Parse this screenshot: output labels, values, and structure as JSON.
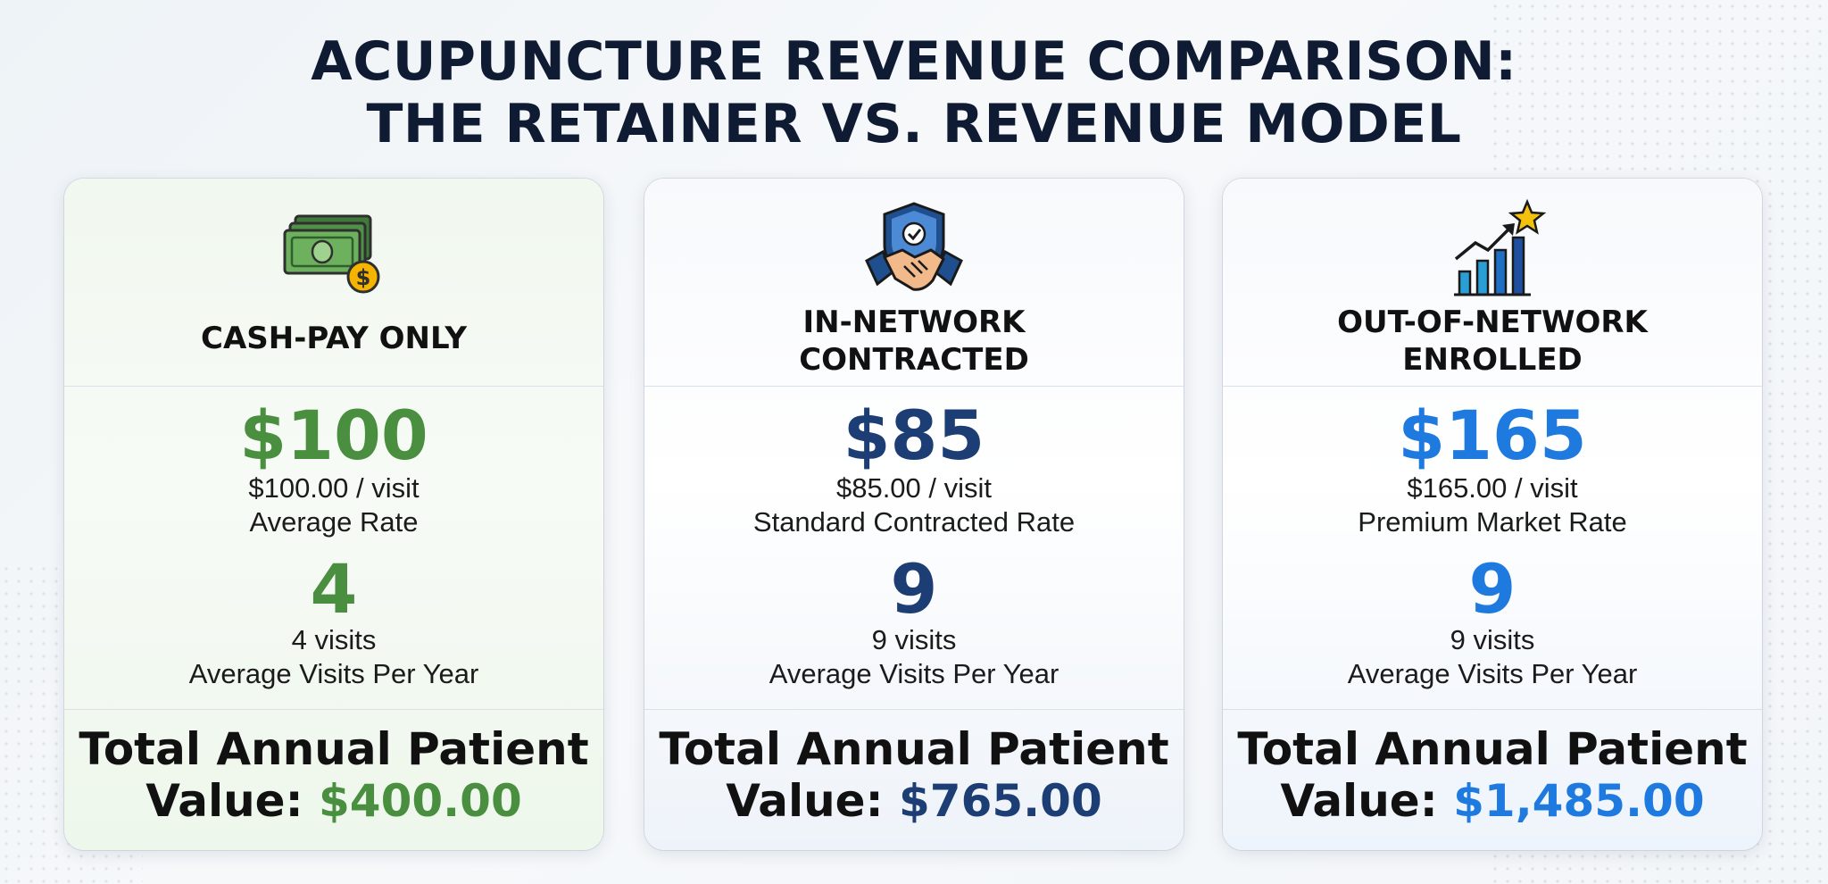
{
  "title": {
    "line1": "ACUPUNCTURE REVENUE COMPARISON:",
    "line2": "THE RETAINER VS. REVENUE MODEL"
  },
  "colors": {
    "cash_accent": "#4a8f3f",
    "in_network_accent": "#1c3e74",
    "out_network_accent": "#1f7ae0",
    "title": "#0f1b33"
  },
  "cards": [
    {
      "icon": "cash-money-icon",
      "name_line1": "CASH-PAY ONLY",
      "name_line2": "",
      "rate_big": "$100",
      "rate_detail": "$100.00 / visit",
      "rate_label": "Average Rate",
      "visits_big": "4",
      "visits_detail": "4 visits",
      "visits_label": "Average Visits Per Year",
      "total_line1": "Total Annual Patient",
      "total_prefix": "Value: ",
      "total_amount": "$400.00"
    },
    {
      "icon": "handshake-shield-icon",
      "name_line1": "IN-NETWORK",
      "name_line2": "CONTRACTED",
      "rate_big": "$85",
      "rate_detail": "$85.00 / visit",
      "rate_label": "Standard Contracted Rate",
      "visits_big": "9",
      "visits_detail": "9 visits",
      "visits_label": "Average Visits Per Year",
      "total_line1": "Total Annual Patient",
      "total_prefix": "Value: ",
      "total_amount": "$765.00"
    },
    {
      "icon": "growth-chart-star-icon",
      "name_line1": "OUT-OF-NETWORK",
      "name_line2": "ENROLLED",
      "rate_big": "$165",
      "rate_detail": "$165.00 / visit",
      "rate_label": "Premium Market Rate",
      "visits_big": "9",
      "visits_detail": "9 visits",
      "visits_label": "Average Visits Per Year",
      "total_line1": "Total Annual Patient",
      "total_prefix": "Value: ",
      "total_amount": "$1,485.00"
    }
  ]
}
